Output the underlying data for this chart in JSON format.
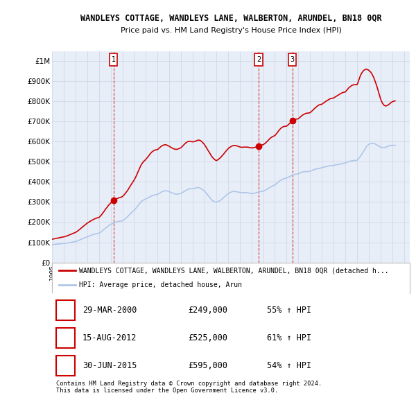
{
  "title": "WANDLEYS COTTAGE, WANDLEYS LANE, WALBERTON, ARUNDEL, BN18 0QR",
  "subtitle": "Price paid vs. HM Land Registry's House Price Index (HPI)",
  "ylim": [
    0,
    1050000
  ],
  "yticks": [
    0,
    100000,
    200000,
    300000,
    400000,
    500000,
    600000,
    700000,
    800000,
    900000,
    1000000
  ],
  "ytick_labels": [
    "£0",
    "£100K",
    "£200K",
    "£300K",
    "£400K",
    "£500K",
    "£600K",
    "£700K",
    "£800K",
    "£900K",
    "£1M"
  ],
  "sale_dates_decimal": [
    2000.24,
    2012.62,
    2015.49
  ],
  "sale_prices": [
    249000,
    525000,
    595000
  ],
  "sale_labels": [
    "1",
    "2",
    "3"
  ],
  "hpi_color": "#aec6e8",
  "price_color": "#cc0000",
  "grid_color": "#d0d8e8",
  "bg_color": "#e8eef8",
  "panel_color": "#ffffff",
  "legend_entries": [
    "WANDLEYS COTTAGE, WANDLEYS LANE, WALBERTON, ARUNDEL, BN18 0QR (detached h...",
    "HPI: Average price, detached house, Arun"
  ],
  "table_rows": [
    {
      "num": "1",
      "date": "29-MAR-2000",
      "price": "£249,000",
      "change": "55% ↑ HPI"
    },
    {
      "num": "2",
      "date": "15-AUG-2012",
      "price": "£525,000",
      "change": "61% ↑ HPI"
    },
    {
      "num": "3",
      "date": "30-JUN-2015",
      "price": "£595,000",
      "change": "54% ↑ HPI"
    }
  ],
  "footer_text": "Contains HM Land Registry data © Crown copyright and database right 2024.\nThis data is licensed under the Open Government Licence v3.0.",
  "hpi_data_years": [
    1995.0,
    1995.08,
    1995.17,
    1995.25,
    1995.33,
    1995.42,
    1995.5,
    1995.58,
    1995.67,
    1995.75,
    1995.83,
    1995.92,
    1996.0,
    1996.08,
    1996.17,
    1996.25,
    1996.33,
    1996.42,
    1996.5,
    1996.58,
    1996.67,
    1996.75,
    1996.83,
    1996.92,
    1997.0,
    1997.08,
    1997.17,
    1997.25,
    1997.33,
    1997.42,
    1997.5,
    1997.58,
    1997.67,
    1997.75,
    1997.83,
    1997.92,
    1998.0,
    1998.08,
    1998.17,
    1998.25,
    1998.33,
    1998.42,
    1998.5,
    1998.58,
    1998.67,
    1998.75,
    1998.83,
    1998.92,
    1999.0,
    1999.08,
    1999.17,
    1999.25,
    1999.33,
    1999.42,
    1999.5,
    1999.58,
    1999.67,
    1999.75,
    1999.83,
    1999.92,
    2000.0,
    2000.08,
    2000.17,
    2000.25,
    2000.33,
    2000.42,
    2000.5,
    2000.58,
    2000.67,
    2000.75,
    2000.83,
    2000.92,
    2001.0,
    2001.08,
    2001.17,
    2001.25,
    2001.33,
    2001.42,
    2001.5,
    2001.58,
    2001.67,
    2001.75,
    2001.83,
    2001.92,
    2002.0,
    2002.08,
    2002.17,
    2002.25,
    2002.33,
    2002.42,
    2002.5,
    2002.58,
    2002.67,
    2002.75,
    2002.83,
    2002.92,
    2003.0,
    2003.08,
    2003.17,
    2003.25,
    2003.33,
    2003.42,
    2003.5,
    2003.58,
    2003.67,
    2003.75,
    2003.83,
    2003.92,
    2004.0,
    2004.08,
    2004.17,
    2004.25,
    2004.33,
    2004.42,
    2004.5,
    2004.58,
    2004.67,
    2004.75,
    2004.83,
    2004.92,
    2005.0,
    2005.08,
    2005.17,
    2005.25,
    2005.33,
    2005.42,
    2005.5,
    2005.58,
    2005.67,
    2005.75,
    2005.83,
    2005.92,
    2006.0,
    2006.08,
    2006.17,
    2006.25,
    2006.33,
    2006.42,
    2006.5,
    2006.58,
    2006.67,
    2006.75,
    2006.83,
    2006.92,
    2007.0,
    2007.08,
    2007.17,
    2007.25,
    2007.33,
    2007.42,
    2007.5,
    2007.58,
    2007.67,
    2007.75,
    2007.83,
    2007.92,
    2008.0,
    2008.08,
    2008.17,
    2008.25,
    2008.33,
    2008.42,
    2008.5,
    2008.58,
    2008.67,
    2008.75,
    2008.83,
    2008.92,
    2009.0,
    2009.08,
    2009.17,
    2009.25,
    2009.33,
    2009.42,
    2009.5,
    2009.58,
    2009.67,
    2009.75,
    2009.83,
    2009.92,
    2010.0,
    2010.08,
    2010.17,
    2010.25,
    2010.33,
    2010.42,
    2010.5,
    2010.58,
    2010.67,
    2010.75,
    2010.83,
    2010.92,
    2011.0,
    2011.08,
    2011.17,
    2011.25,
    2011.33,
    2011.42,
    2011.5,
    2011.58,
    2011.67,
    2011.75,
    2011.83,
    2011.92,
    2012.0,
    2012.08,
    2012.17,
    2012.25,
    2012.33,
    2012.42,
    2012.5,
    2012.58,
    2012.67,
    2012.75,
    2012.83,
    2012.92,
    2013.0,
    2013.08,
    2013.17,
    2013.25,
    2013.33,
    2013.42,
    2013.5,
    2013.58,
    2013.67,
    2013.75,
    2013.83,
    2013.92,
    2014.0,
    2014.08,
    2014.17,
    2014.25,
    2014.33,
    2014.42,
    2014.5,
    2014.58,
    2014.67,
    2014.75,
    2014.83,
    2014.92,
    2015.0,
    2015.08,
    2015.17,
    2015.25,
    2015.33,
    2015.42,
    2015.5,
    2015.58,
    2015.67,
    2015.75,
    2015.83,
    2015.92,
    2016.0,
    2016.08,
    2016.17,
    2016.25,
    2016.33,
    2016.42,
    2016.5,
    2016.58,
    2016.67,
    2016.75,
    2016.83,
    2016.92,
    2017.0,
    2017.08,
    2017.17,
    2017.25,
    2017.33,
    2017.42,
    2017.5,
    2017.58,
    2017.67,
    2017.75,
    2017.83,
    2017.92,
    2018.0,
    2018.08,
    2018.17,
    2018.25,
    2018.33,
    2018.42,
    2018.5,
    2018.58,
    2018.67,
    2018.75,
    2018.83,
    2018.92,
    2019.0,
    2019.08,
    2019.17,
    2019.25,
    2019.33,
    2019.42,
    2019.5,
    2019.58,
    2019.67,
    2019.75,
    2019.83,
    2019.92,
    2020.0,
    2020.08,
    2020.17,
    2020.25,
    2020.33,
    2020.42,
    2020.5,
    2020.58,
    2020.67,
    2020.75,
    2020.83,
    2020.92,
    2021.0,
    2021.08,
    2021.17,
    2021.25,
    2021.33,
    2021.42,
    2021.5,
    2021.58,
    2021.67,
    2021.75,
    2021.83,
    2021.92,
    2022.0,
    2022.08,
    2022.17,
    2022.25,
    2022.33,
    2022.42,
    2022.5,
    2022.58,
    2022.67,
    2022.75,
    2022.83,
    2022.92,
    2023.0,
    2023.08,
    2023.17,
    2023.25,
    2023.33,
    2023.42,
    2023.5,
    2023.58,
    2023.67,
    2023.75,
    2023.83,
    2023.92,
    2024.0,
    2024.08,
    2024.17,
    2024.25
  ],
  "hpi_data_values": [
    88000,
    88500,
    89000,
    89500,
    90000,
    90500,
    91000,
    91500,
    92000,
    92500,
    93000,
    93500,
    94000,
    94500,
    95000,
    95500,
    96000,
    97000,
    98000,
    99000,
    100000,
    101000,
    102000,
    103000,
    104000,
    105000,
    107000,
    109000,
    111000,
    113000,
    115000,
    117000,
    119000,
    121000,
    123000,
    125000,
    127000,
    129000,
    131000,
    133000,
    135000,
    137000,
    139000,
    140000,
    141000,
    142000,
    143000,
    144000,
    145000,
    148000,
    151000,
    155000,
    159000,
    163000,
    167000,
    171000,
    175000,
    179000,
    183000,
    186000,
    189000,
    191000,
    193000,
    195000,
    197000,
    199000,
    201000,
    202000,
    203000,
    204000,
    205000,
    206000,
    207000,
    210000,
    213000,
    217000,
    221000,
    226000,
    231000,
    236000,
    241000,
    246000,
    251000,
    255000,
    259000,
    264000,
    270000,
    276000,
    282000,
    288000,
    294000,
    300000,
    305000,
    308000,
    311000,
    313000,
    315000,
    318000,
    320000,
    323000,
    326000,
    328000,
    331000,
    333000,
    334000,
    335000,
    336000,
    337000,
    338000,
    341000,
    344000,
    347000,
    350000,
    352000,
    354000,
    355000,
    356000,
    356000,
    355000,
    353000,
    351000,
    349000,
    347000,
    345000,
    343000,
    341000,
    340000,
    339000,
    339000,
    340000,
    341000,
    342000,
    343000,
    346000,
    349000,
    352000,
    355000,
    358000,
    361000,
    363000,
    365000,
    366000,
    366000,
    366000,
    366000,
    367000,
    368000,
    370000,
    371000,
    372000,
    372000,
    370000,
    368000,
    365000,
    362000,
    358000,
    354000,
    349000,
    343000,
    337000,
    331000,
    325000,
    319000,
    313000,
    308000,
    305000,
    302000,
    300000,
    299000,
    300000,
    302000,
    305000,
    308000,
    311000,
    315000,
    319000,
    323000,
    328000,
    333000,
    337000,
    341000,
    344000,
    347000,
    349000,
    351000,
    352000,
    353000,
    353000,
    352000,
    351000,
    350000,
    349000,
    348000,
    347000,
    347000,
    347000,
    347000,
    347000,
    347000,
    346000,
    346000,
    345000,
    344000,
    343000,
    342000,
    342000,
    343000,
    344000,
    345000,
    346000,
    348000,
    350000,
    351000,
    352000,
    353000,
    353000,
    354000,
    356000,
    358000,
    361000,
    364000,
    367000,
    370000,
    373000,
    376000,
    379000,
    381000,
    383000,
    385000,
    389000,
    393000,
    397000,
    401000,
    405000,
    408000,
    411000,
    413000,
    415000,
    417000,
    418000,
    419000,
    421000,
    424000,
    426000,
    429000,
    431000,
    433000,
    435000,
    437000,
    438000,
    439000,
    440000,
    441000,
    443000,
    445000,
    447000,
    449000,
    450000,
    451000,
    451000,
    451000,
    451000,
    451000,
    452000,
    453000,
    455000,
    457000,
    459000,
    461000,
    463000,
    464000,
    465000,
    466000,
    467000,
    468000,
    469000,
    470000,
    472000,
    473000,
    474000,
    476000,
    477000,
    478000,
    479000,
    480000,
    481000,
    481000,
    481000,
    482000,
    483000,
    484000,
    485000,
    486000,
    487000,
    488000,
    489000,
    490000,
    491000,
    492000,
    493000,
    494000,
    496000,
    498000,
    500000,
    502000,
    503000,
    504000,
    505000,
    506000,
    507000,
    507000,
    507000,
    508000,
    512000,
    518000,
    524000,
    531000,
    538000,
    546000,
    554000,
    562000,
    570000,
    577000,
    582000,
    586000,
    589000,
    591000,
    592000,
    592000,
    591000,
    590000,
    588000,
    585000,
    582000,
    579000,
    576000,
    573000,
    572000,
    571000,
    571000,
    571000,
    572000,
    574000,
    576000,
    578000,
    580000,
    581000,
    582000,
    582000,
    582000,
    582000,
    582000
  ],
  "price_data_years": [
    1995.0,
    1995.08,
    1995.17,
    1995.25,
    1995.33,
    1995.42,
    1995.5,
    1995.58,
    1995.67,
    1995.75,
    1995.83,
    1995.92,
    1996.0,
    1996.08,
    1996.17,
    1996.25,
    1996.33,
    1996.42,
    1996.5,
    1996.58,
    1996.67,
    1996.75,
    1996.83,
    1996.92,
    1997.0,
    1997.08,
    1997.17,
    1997.25,
    1997.33,
    1997.42,
    1997.5,
    1997.58,
    1997.67,
    1997.75,
    1997.83,
    1997.92,
    1998.0,
    1998.08,
    1998.17,
    1998.25,
    1998.33,
    1998.42,
    1998.5,
    1998.58,
    1998.67,
    1998.75,
    1998.83,
    1998.92,
    1999.0,
    1999.08,
    1999.17,
    1999.25,
    1999.33,
    1999.42,
    1999.5,
    1999.58,
    1999.67,
    1999.75,
    1999.83,
    1999.92,
    2000.0,
    2000.08,
    2000.17,
    2000.25,
    2000.33,
    2000.42,
    2000.5,
    2000.58,
    2000.67,
    2000.75,
    2000.83,
    2000.92,
    2001.0,
    2001.08,
    2001.17,
    2001.25,
    2001.33,
    2001.42,
    2001.5,
    2001.58,
    2001.67,
    2001.75,
    2001.83,
    2001.92,
    2002.0,
    2002.08,
    2002.17,
    2002.25,
    2002.33,
    2002.42,
    2002.5,
    2002.58,
    2002.67,
    2002.75,
    2002.83,
    2002.92,
    2003.0,
    2003.08,
    2003.17,
    2003.25,
    2003.33,
    2003.42,
    2003.5,
    2003.58,
    2003.67,
    2003.75,
    2003.83,
    2003.92,
    2004.0,
    2004.08,
    2004.17,
    2004.25,
    2004.33,
    2004.42,
    2004.5,
    2004.58,
    2004.67,
    2004.75,
    2004.83,
    2004.92,
    2005.0,
    2005.08,
    2005.17,
    2005.25,
    2005.33,
    2005.42,
    2005.5,
    2005.58,
    2005.67,
    2005.75,
    2005.83,
    2005.92,
    2006.0,
    2006.08,
    2006.17,
    2006.25,
    2006.33,
    2006.42,
    2006.5,
    2006.58,
    2006.67,
    2006.75,
    2006.83,
    2006.92,
    2007.0,
    2007.08,
    2007.17,
    2007.25,
    2007.33,
    2007.42,
    2007.5,
    2007.58,
    2007.67,
    2007.75,
    2007.83,
    2007.92,
    2008.0,
    2008.08,
    2008.17,
    2008.25,
    2008.33,
    2008.42,
    2008.5,
    2008.58,
    2008.67,
    2008.75,
    2008.83,
    2008.92,
    2009.0,
    2009.08,
    2009.17,
    2009.25,
    2009.33,
    2009.42,
    2009.5,
    2009.58,
    2009.67,
    2009.75,
    2009.83,
    2009.92,
    2010.0,
    2010.08,
    2010.17,
    2010.25,
    2010.33,
    2010.42,
    2010.5,
    2010.58,
    2010.67,
    2010.75,
    2010.83,
    2010.92,
    2011.0,
    2011.08,
    2011.17,
    2011.25,
    2011.33,
    2011.42,
    2011.5,
    2011.58,
    2011.67,
    2011.75,
    2011.83,
    2011.92,
    2012.0,
    2012.08,
    2012.17,
    2012.25,
    2012.33,
    2012.42,
    2012.5,
    2012.58,
    2012.67,
    2012.75,
    2012.83,
    2012.92,
    2013.0,
    2013.08,
    2013.17,
    2013.25,
    2013.33,
    2013.42,
    2013.5,
    2013.58,
    2013.67,
    2013.75,
    2013.83,
    2013.92,
    2014.0,
    2014.08,
    2014.17,
    2014.25,
    2014.33,
    2014.42,
    2014.5,
    2014.58,
    2014.67,
    2014.75,
    2014.83,
    2014.92,
    2015.0,
    2015.08,
    2015.17,
    2015.25,
    2015.33,
    2015.42,
    2015.5,
    2015.58,
    2015.67,
    2015.75,
    2015.83,
    2015.92,
    2016.0,
    2016.08,
    2016.17,
    2016.25,
    2016.33,
    2016.42,
    2016.5,
    2016.58,
    2016.67,
    2016.75,
    2016.83,
    2016.92,
    2017.0,
    2017.08,
    2017.17,
    2017.25,
    2017.33,
    2017.42,
    2017.5,
    2017.58,
    2017.67,
    2017.75,
    2017.83,
    2017.92,
    2018.0,
    2018.08,
    2018.17,
    2018.25,
    2018.33,
    2018.42,
    2018.5,
    2018.58,
    2018.67,
    2018.75,
    2018.83,
    2018.92,
    2019.0,
    2019.08,
    2019.17,
    2019.25,
    2019.33,
    2019.42,
    2019.5,
    2019.58,
    2019.67,
    2019.75,
    2019.83,
    2019.92,
    2020.0,
    2020.08,
    2020.17,
    2020.25,
    2020.33,
    2020.42,
    2020.5,
    2020.58,
    2020.67,
    2020.75,
    2020.83,
    2020.92,
    2021.0,
    2021.08,
    2021.17,
    2021.25,
    2021.33,
    2021.42,
    2021.5,
    2021.58,
    2021.67,
    2021.75,
    2021.83,
    2021.92,
    2022.0,
    2022.08,
    2022.17,
    2022.25,
    2022.33,
    2022.42,
    2022.5,
    2022.58,
    2022.67,
    2022.75,
    2022.83,
    2022.92,
    2023.0,
    2023.08,
    2023.17,
    2023.25,
    2023.33,
    2023.42,
    2023.5,
    2023.58,
    2023.67,
    2023.75,
    2023.83,
    2023.92,
    2024.0,
    2024.08,
    2024.17,
    2024.25
  ],
  "price_data_values": [
    115000,
    116000,
    117000,
    118000,
    119000,
    120000,
    121000,
    122000,
    123000,
    124000,
    125000,
    126000,
    127000,
    128000,
    130000,
    131000,
    133000,
    135000,
    137000,
    139000,
    141000,
    143000,
    145000,
    147000,
    149000,
    152000,
    155000,
    159000,
    163000,
    167000,
    171000,
    175000,
    179000,
    183000,
    187000,
    191000,
    195000,
    198000,
    201000,
    204000,
    207000,
    210000,
    213000,
    215000,
    217000,
    219000,
    221000,
    222000,
    223000,
    228000,
    233000,
    239000,
    245000,
    252000,
    259000,
    266000,
    272000,
    278000,
    285000,
    290000,
    295000,
    299000,
    303000,
    307000,
    310000,
    313000,
    316000,
    318000,
    320000,
    322000,
    323000,
    325000,
    327000,
    332000,
    337000,
    343000,
    349000,
    356000,
    363000,
    371000,
    379000,
    387000,
    394000,
    402000,
    409000,
    418000,
    428000,
    439000,
    450000,
    461000,
    472000,
    482000,
    491000,
    497000,
    503000,
    508000,
    512000,
    518000,
    524000,
    530000,
    537000,
    543000,
    548000,
    552000,
    555000,
    558000,
    559000,
    560000,
    561000,
    565000,
    569000,
    574000,
    578000,
    581000,
    583000,
    584000,
    585000,
    584000,
    582000,
    579000,
    577000,
    574000,
    571000,
    568000,
    566000,
    564000,
    562000,
    562000,
    562000,
    564000,
    566000,
    568000,
    570000,
    575000,
    580000,
    585000,
    590000,
    594000,
    598000,
    600000,
    602000,
    602000,
    601000,
    600000,
    599000,
    600000,
    601000,
    603000,
    605000,
    607000,
    608000,
    607000,
    605000,
    601000,
    597000,
    591000,
    585000,
    578000,
    570000,
    562000,
    554000,
    546000,
    538000,
    530000,
    523000,
    518000,
    513000,
    509000,
    506000,
    508000,
    511000,
    515000,
    519000,
    524000,
    530000,
    535000,
    541000,
    547000,
    553000,
    559000,
    564000,
    569000,
    572000,
    575000,
    578000,
    580000,
    581000,
    581000,
    581000,
    579000,
    578000,
    576000,
    574000,
    573000,
    572000,
    572000,
    573000,
    573000,
    573000,
    573000,
    573000,
    572000,
    571000,
    570000,
    569000,
    569000,
    570000,
    571000,
    572000,
    574000,
    576000,
    578000,
    580000,
    582000,
    583000,
    584000,
    585000,
    588000,
    592000,
    596000,
    601000,
    606000,
    611000,
    616000,
    620000,
    623000,
    626000,
    628000,
    630000,
    636000,
    642000,
    648000,
    655000,
    661000,
    666000,
    670000,
    673000,
    675000,
    676000,
    677000,
    677000,
    681000,
    685000,
    690000,
    695000,
    699000,
    703000,
    706000,
    709000,
    711000,
    712000,
    713000,
    714000,
    718000,
    722000,
    726000,
    731000,
    734000,
    737000,
    739000,
    741000,
    742000,
    742000,
    743000,
    744000,
    748000,
    752000,
    757000,
    762000,
    767000,
    771000,
    775000,
    779000,
    782000,
    784000,
    785000,
    786000,
    789000,
    793000,
    796000,
    800000,
    803000,
    806000,
    809000,
    812000,
    814000,
    815000,
    816000,
    817000,
    820000,
    823000,
    826000,
    829000,
    832000,
    835000,
    838000,
    841000,
    843000,
    845000,
    846000,
    847000,
    852000,
    858000,
    864000,
    870000,
    873000,
    877000,
    880000,
    882000,
    883000,
    884000,
    883000,
    883000,
    893000,
    908000,
    922000,
    933000,
    942000,
    949000,
    954000,
    958000,
    960000,
    960000,
    958000,
    955000,
    951000,
    946000,
    939000,
    930000,
    920000,
    908000,
    895000,
    880000,
    864000,
    847000,
    830000,
    815000,
    802000,
    792000,
    785000,
    780000,
    778000,
    778000,
    780000,
    783000,
    787000,
    791000,
    795000,
    798000,
    800000,
    802000,
    803000
  ]
}
